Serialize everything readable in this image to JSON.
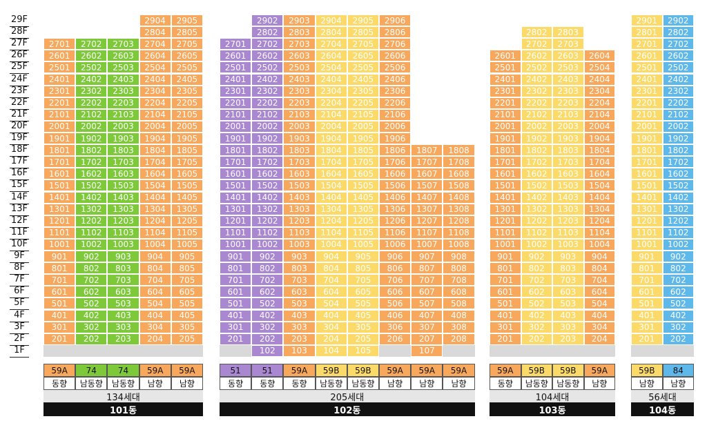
{
  "floors": [
    "29F",
    "28F",
    "27F",
    "26F",
    "25F",
    "24F",
    "23F",
    "22F",
    "21F",
    "20F",
    "19F",
    "18F",
    "17F",
    "16F",
    "15F",
    "14F",
    "13F",
    "12F",
    "11F",
    "10F",
    "9F",
    "8F",
    "7F",
    "6F",
    "5F",
    "4F",
    "3F",
    "2F",
    "1F"
  ],
  "colors": {
    "orange": "#f8a85c",
    "green": "#7dc93a",
    "purple": "#a987d1",
    "light_yellow": "#fcda6a",
    "yellow_orange": "#fbc55d",
    "blue": "#5fb8ea",
    "gray": "#d9d9d9",
    "black": "#111111"
  },
  "buildings": [
    {
      "name": "101동",
      "households": "134세대",
      "columns": [
        {
          "line": "01",
          "type": "59A",
          "direction": "동향",
          "color": "orange",
          "top": 27,
          "bottom": 2
        },
        {
          "line": "02",
          "type": "74",
          "direction": "남동향",
          "color": "green",
          "top": 27,
          "bottom": 2
        },
        {
          "line": "03",
          "type": "74",
          "direction": "남동향",
          "color": "green",
          "top": 27,
          "bottom": 2
        },
        {
          "line": "04",
          "type": "59A",
          "direction": "남향",
          "color": "orange",
          "top": 29,
          "bottom": 2
        },
        {
          "line": "05",
          "type": "59A",
          "direction": "남향",
          "color": "orange",
          "top": 29,
          "bottom": 2
        }
      ]
    },
    {
      "name": "102동",
      "households": "205세대",
      "columns": [
        {
          "line": "01",
          "type": "51",
          "direction": "동향",
          "color": "purple",
          "top": 27,
          "bottom": 2
        },
        {
          "line": "02",
          "type": "51",
          "direction": "동향",
          "color": "purple",
          "top": 29,
          "bottom": 1
        },
        {
          "line": "03",
          "type": "59A",
          "direction": "동향",
          "color": "orange",
          "top": 29,
          "bottom": 1
        },
        {
          "line": "04",
          "type": "59B",
          "direction": "남동향",
          "color": "light_yellow",
          "top": 29,
          "bottom": 1
        },
        {
          "line": "05",
          "type": "59B",
          "direction": "남동향",
          "color": "light_yellow",
          "top": 29,
          "bottom": 1
        },
        {
          "line": "06",
          "type": "59A",
          "direction": "남향",
          "color": "orange",
          "top": 29,
          "bottom": 2
        },
        {
          "line": "07",
          "type": "59A",
          "direction": "남향",
          "color": "orange",
          "top": 18,
          "bottom": 1
        },
        {
          "line": "08",
          "type": "59A",
          "direction": "남향",
          "color": "orange",
          "top": 18,
          "bottom": 2
        }
      ]
    },
    {
      "name": "103동",
      "households": "104세대",
      "columns": [
        {
          "line": "01",
          "type": "59A",
          "direction": "동향",
          "color": "orange",
          "top": 26,
          "bottom": 2
        },
        {
          "line": "02",
          "type": "59B",
          "direction": "남동향",
          "color": "light_yellow",
          "top": 28,
          "bottom": 2
        },
        {
          "line": "03",
          "type": "59B",
          "direction": "남동향",
          "color": "light_yellow",
          "top": 28,
          "bottom": 2
        },
        {
          "line": "04",
          "type": "59A",
          "direction": "남향",
          "color": "orange",
          "top": 26,
          "bottom": 2
        }
      ]
    },
    {
      "name": "104동",
      "households": "56세대",
      "columns": [
        {
          "line": "01",
          "type": "59B",
          "direction": "남향",
          "color": "light_yellow",
          "top": 29,
          "bottom": 2
        },
        {
          "line": "02",
          "type": "84",
          "direction": "남향",
          "color": "blue",
          "top": 29,
          "bottom": 2
        }
      ]
    }
  ]
}
